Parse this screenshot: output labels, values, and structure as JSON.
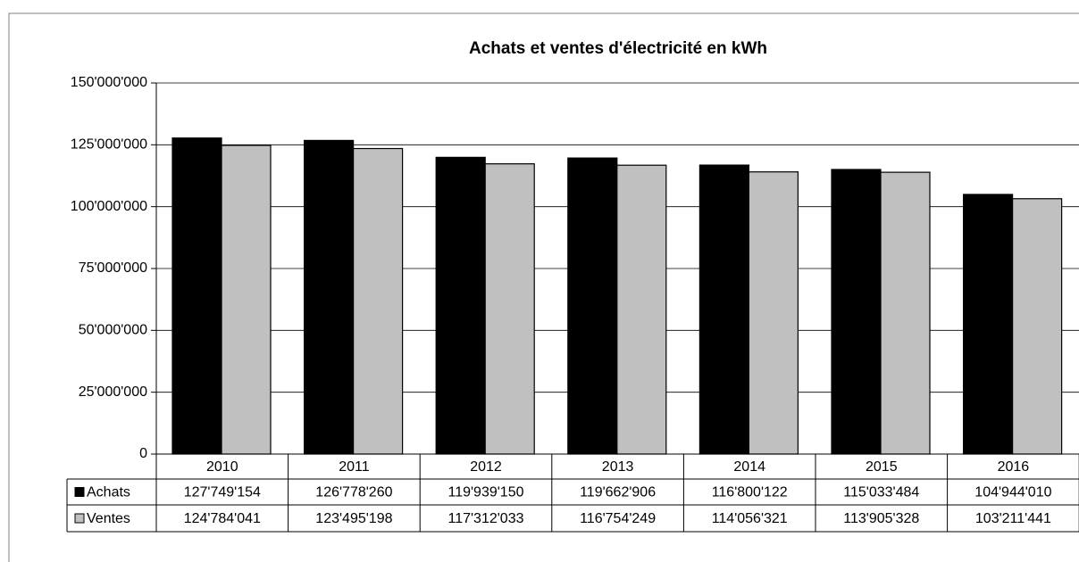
{
  "chart_data": {
    "type": "bar",
    "title": "Achats et ventes d'électricité en kWh",
    "categories": [
      "2010",
      "2011",
      "2012",
      "2013",
      "2014",
      "2015",
      "2016"
    ],
    "series": [
      {
        "name": "Achats",
        "color": "#000000",
        "values": [
          127749154,
          126778260,
          119939150,
          119662906,
          116800122,
          115033484,
          104944010
        ],
        "value_labels": [
          "127'749'154",
          "126'778'260",
          "119'939'150",
          "119'662'906",
          "116'800'122",
          "115'033'484",
          "104'944'010"
        ]
      },
      {
        "name": "Ventes",
        "color": "#c0c0c0",
        "values": [
          124784041,
          123495198,
          117312033,
          116754249,
          114056321,
          113905328,
          103211441
        ],
        "value_labels": [
          "124'784'041",
          "123'495'198",
          "117'312'033",
          "116'754'249",
          "114'056'321",
          "113'905'328",
          "103'211'441"
        ]
      }
    ],
    "ylim": [
      0,
      150000000
    ],
    "yticks": [
      0,
      {
        "value": 25000000,
        "label": "25'000'000"
      },
      {
        "value": 50000000,
        "label": "50'000'000"
      },
      {
        "value": 75000000,
        "label": "75'000'000"
      },
      {
        "value": 100000000,
        "label": "100'000'000"
      },
      {
        "value": 125000000,
        "label": "125'000'000"
      },
      {
        "value": 150000000,
        "label": "150'000'000"
      }
    ],
    "grid": true
  }
}
